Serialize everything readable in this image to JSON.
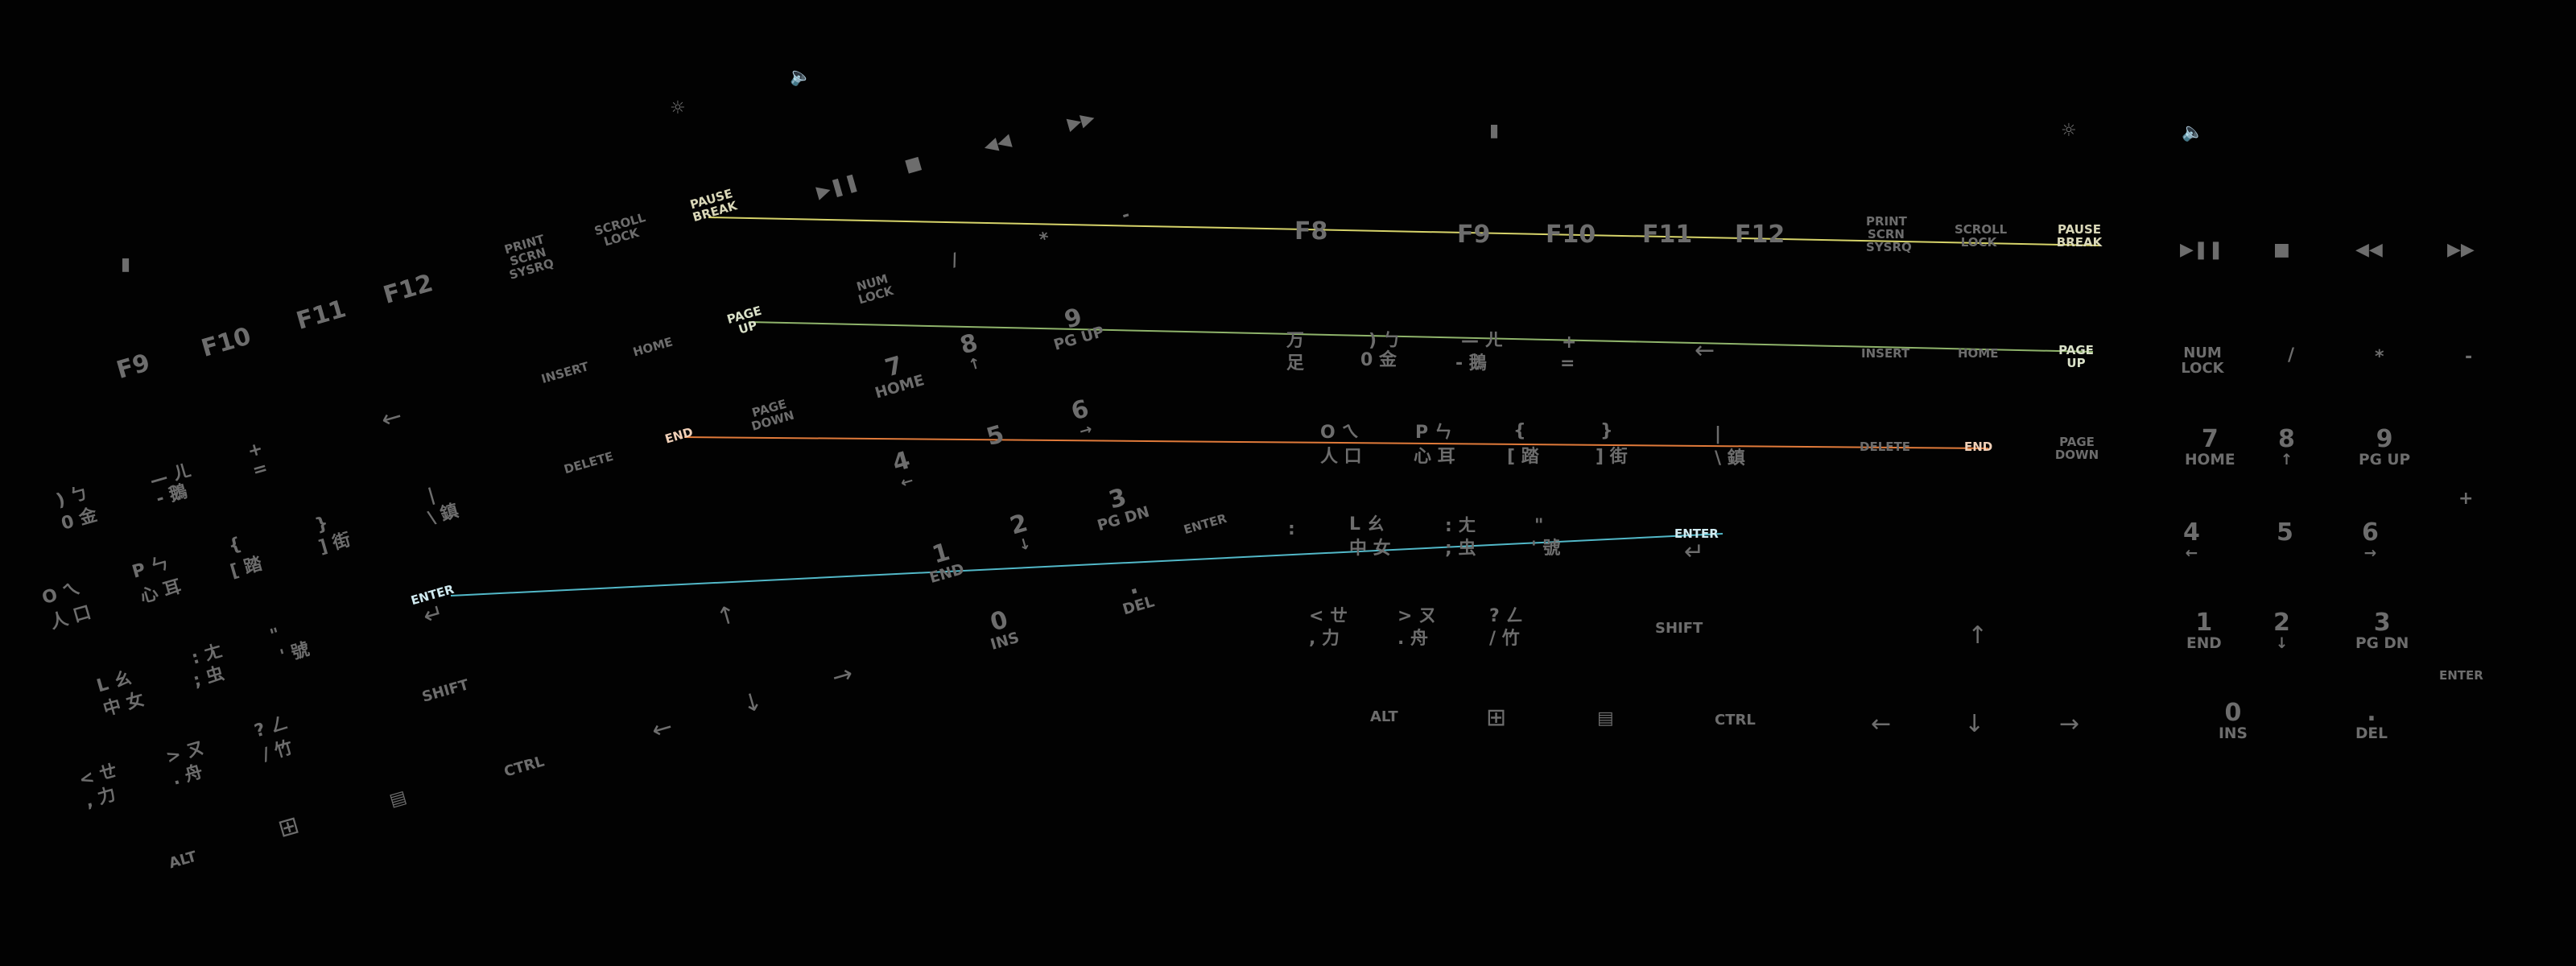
{
  "colors": {
    "background": "#020202",
    "key_legend": "#6d6d6d",
    "line_yellow": "#d6d36a",
    "line_green": "#8fb36b",
    "line_orange": "#e07a3a",
    "line_cyan": "#52b8c8"
  },
  "icons": {
    "brightness": "brightness-icon",
    "mute": "mute-icon",
    "play_pause": "play-pause-icon",
    "stop": "stop-icon",
    "prev_track": "prev-track-icon",
    "next_track": "next-track-icon",
    "windows": "windows-icon",
    "menu": "menu-icon",
    "enter_arrow": "enter-arrow-icon",
    "backspace_arrow": "backspace-arrow-icon"
  },
  "right_kb": {
    "f8": "F8",
    "f9": "F9",
    "f10": "F10",
    "f11": "F11",
    "f12": "F12",
    "print": "PRINT SCRN SYSRQ",
    "scroll": "SCROLL LOCK",
    "pause": "PAUSE BREAK",
    "insert": "INSERT",
    "home": "HOME",
    "pgup": "PAGE UP",
    "delete": "DELETE",
    "end": "END",
    "pgdn": "PAGE DOWN",
    "numlock": "NUM LOCK",
    "slash": "/",
    "star": "*",
    "minus": "-",
    "plus": "+",
    "n7": "7",
    "n7s": "HOME",
    "n8": "8",
    "n9": "9",
    "n9s": "PG UP",
    "n4": "4",
    "n5": "5",
    "n6": "6",
    "n1": "1",
    "n1s": "END",
    "n2": "2",
    "n3": "3",
    "n3s": "PG DN",
    "n0": "0",
    "n0s": "INS",
    "dot": ".",
    "dots": "DEL",
    "enter": "ENTER",
    "shift": "SHIFT",
    "alt": "ALT",
    "ctrl": "CTRL",
    "enter_main": "ENTER",
    "zh_r1a": "万",
    "zh_r1b": "足",
    "zh_r1c": ") ㄅ",
    "zh_r1d": "0 金",
    "zh_r1e": "— ㄦ",
    "zh_r1f": "- 鵝",
    "zh_r1g": "+",
    "zh_r1h": "=",
    "zh_r2a": "O ㄟ",
    "zh_r2b": "人 口",
    "zh_r2c": "P ㄣ",
    "zh_r2d": "心 耳",
    "zh_r2e": "{",
    "zh_r2f": "[ 踏",
    "zh_r2g": "}",
    "zh_r2h": "] 街",
    "zh_r2i": "|",
    "zh_r2j": "\\ 鎮",
    "zh_r3a": ":",
    "zh_r3b": "L ㄠ",
    "zh_r3c": "中 女",
    "zh_r3d": ": ㄤ",
    "zh_r3e": "; 虫",
    "zh_r3f": "\"",
    "zh_r3g": "' 號",
    "zh_r4a": "< ㄝ",
    "zh_r4b": ", 力",
    "zh_r4c": "> ㄡ",
    "zh_r4d": ". 舟",
    "zh_r4e": "? ㄥ",
    "zh_r4f": "/ 竹"
  },
  "left_kb": {
    "f9": "F9",
    "f10": "F10",
    "f11": "F11",
    "f12": "F12",
    "print": "PRINT SCRN SYSRQ",
    "scroll": "SCROLL LOCK",
    "pause": "PAUSE BREAK",
    "insert": "INSERT",
    "home": "HOME",
    "pgup": "PAGE UP",
    "delete": "DELETE",
    "end": "END",
    "pgdn": "PAGE DOWN",
    "numlock": "NUM LOCK",
    "slash": "/",
    "star": "*",
    "minus": "-",
    "n7": "7",
    "n7s": "HOME",
    "n8": "8",
    "n9": "9",
    "n9s": "PG UP",
    "n4": "4",
    "n5": "5",
    "n6": "6",
    "n1": "1",
    "n1s": "END",
    "n2": "2",
    "n3": "3",
    "n3s": "PG DN",
    "n0": "0",
    "n0s": "INS",
    "dot": ".",
    "dots": "DEL",
    "enter": "ENTER",
    "shift": "SHIFT",
    "alt": "ALT",
    "ctrl": "CTRL",
    "enter_main": "ENTER",
    "zh_a": ") ㄅ",
    "zh_b": "0 金",
    "zh_c": "— ㄦ",
    "zh_d": "- 鵝",
    "zh_e": "+",
    "zh_f": "=",
    "zh_g": "O ㄟ",
    "zh_h": "人 口",
    "zh_i": "P ㄣ",
    "zh_j": "心 耳",
    "zh_k": "{",
    "zh_l": "[ 踏",
    "zh_m": "}",
    "zh_n": "] 街",
    "zh_o": "|",
    "zh_p": "\\ 鎮",
    "zh_q": "L ㄠ",
    "zh_r": "中 女",
    "zh_s": ": ㄤ",
    "zh_t": "; 虫",
    "zh_u": "\"",
    "zh_v": "' 號",
    "zh_w": "< ㄝ",
    "zh_x": ", 力",
    "zh_y": "> ㄡ",
    "zh_z": ". 舟",
    "zh_aa": "? ㄥ",
    "zh_ab": "/ 竹"
  }
}
